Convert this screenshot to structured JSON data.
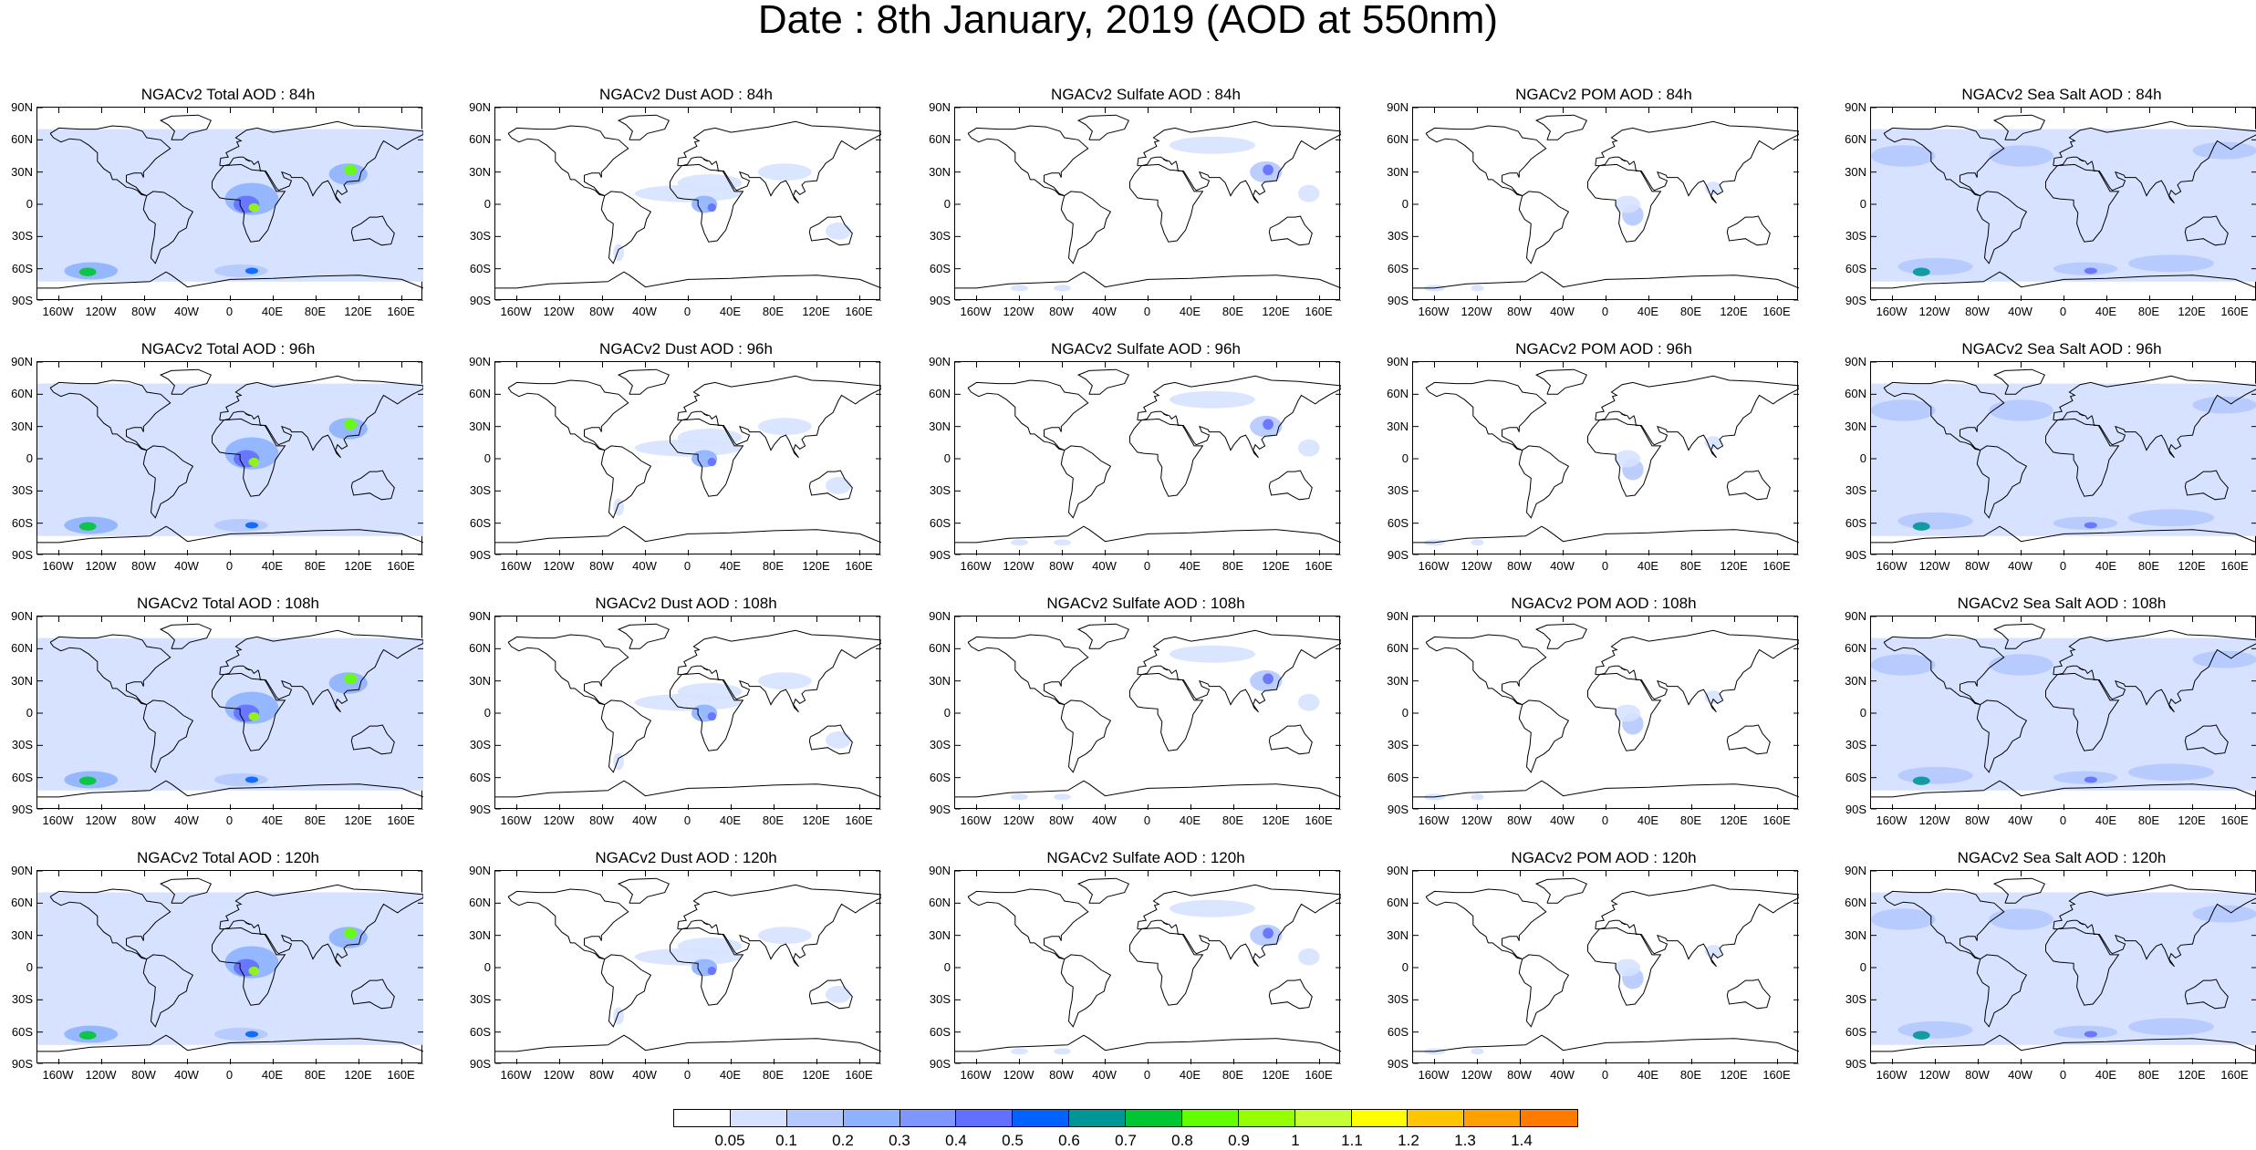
{
  "title": "Date : 8th January, 2019 (AOD at 550nm)",
  "lat_labels": [
    "90N",
    "60N",
    "30N",
    "0",
    "30S",
    "60S",
    "90S"
  ],
  "lon_labels": [
    "160W",
    "120W",
    "80W",
    "40W",
    "0",
    "40E",
    "80E",
    "120E",
    "160E"
  ],
  "lon_values": [
    -160,
    -120,
    -80,
    -40,
    0,
    40,
    80,
    120,
    160
  ],
  "lat_values": [
    90,
    60,
    30,
    0,
    -30,
    -60,
    -90
  ],
  "panels": [
    {
      "title": "NGACv2 Total AOD : 84h",
      "species": "total"
    },
    {
      "title": "NGACv2 Dust AOD : 84h",
      "species": "dust"
    },
    {
      "title": "NGACv2 Sulfate AOD : 84h",
      "species": "sulfate"
    },
    {
      "title": "NGACv2 POM AOD : 84h",
      "species": "pom"
    },
    {
      "title": "NGACv2 Sea Salt AOD : 84h",
      "species": "seasalt"
    },
    {
      "title": "NGACv2 Total AOD : 96h",
      "species": "total"
    },
    {
      "title": "NGACv2 Dust AOD : 96h",
      "species": "dust"
    },
    {
      "title": "NGACv2 Sulfate AOD : 96h",
      "species": "sulfate"
    },
    {
      "title": "NGACv2 POM AOD : 96h",
      "species": "pom"
    },
    {
      "title": "NGACv2 Sea Salt AOD : 96h",
      "species": "seasalt"
    },
    {
      "title": "NGACv2 Total AOD : 108h",
      "species": "total"
    },
    {
      "title": "NGACv2 Dust AOD : 108h",
      "species": "dust"
    },
    {
      "title": "NGACv2 Sulfate AOD : 108h",
      "species": "sulfate"
    },
    {
      "title": "NGACv2 POM AOD : 108h",
      "species": "pom"
    },
    {
      "title": "NGACv2 Sea Salt AOD : 108h",
      "species": "seasalt"
    },
    {
      "title": "NGACv2 Total AOD : 120h",
      "species": "total"
    },
    {
      "title": "NGACv2 Dust AOD : 120h",
      "species": "dust"
    },
    {
      "title": "NGACv2 Sulfate AOD : 120h",
      "species": "sulfate"
    },
    {
      "title": "NGACv2 POM AOD : 120h",
      "species": "pom"
    },
    {
      "title": "NGACv2 Sea Salt  AOD : 120h",
      "species": "seasalt"
    }
  ],
  "colorbar": {
    "levels": [
      "0.05",
      "0.1",
      "0.2",
      "0.3",
      "0.4",
      "0.5",
      "0.6",
      "0.7",
      "0.8",
      "0.9",
      "1",
      "1.1",
      "1.2",
      "1.3",
      "1.4"
    ],
    "colors": [
      "#ffffff",
      "#d6e2ff",
      "#b5c9ff",
      "#8eb2ff",
      "#7f96ff",
      "#6370ff",
      "#0063ff",
      "#009696",
      "#00c633",
      "#63ff00",
      "#96ff00",
      "#c6ff33",
      "#ffff00",
      "#ffc600",
      "#ffa000",
      "#ff7c00",
      "#ff1900"
    ]
  }
}
